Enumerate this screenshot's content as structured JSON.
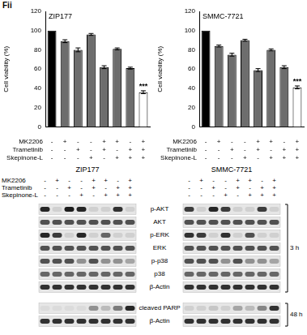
{
  "panel_label": "Fii",
  "treatments": [
    {
      "name": "MK2206",
      "signs": [
        "-",
        "+",
        "-",
        "-",
        "+",
        "+",
        "-",
        "+"
      ]
    },
    {
      "name": "Trametinib",
      "signs": [
        "-",
        "-",
        "+",
        "-",
        "+",
        "-",
        "+",
        "+"
      ]
    },
    {
      "name": "Skepinone-L",
      "signs": [
        "-",
        "-",
        "-",
        "+",
        "-",
        "+",
        "+",
        "+"
      ]
    }
  ],
  "chart_data": [
    {
      "type": "bar",
      "title": "ZIP177",
      "y_label": "Cell viability (%)",
      "categories": [
        null,
        null,
        null,
        null,
        null,
        null,
        null,
        null
      ],
      "values": [
        100,
        89,
        80,
        96,
        62,
        81,
        61,
        36
      ],
      "errors": [
        0,
        1.5,
        2,
        1,
        1.5,
        1,
        1,
        1.5
      ],
      "colors": [
        "#000000",
        "#6d6d6d",
        "#6d6d6d",
        "#6d6d6d",
        "#6d6d6d",
        "#6d6d6d",
        "#6d6d6d",
        "#ffffff"
      ],
      "ylim": [
        0,
        120
      ],
      "yticks": [
        0,
        20,
        40,
        60,
        80,
        100,
        120
      ],
      "grid": false,
      "annotations": [
        {
          "index": 7,
          "text": "***"
        }
      ]
    },
    {
      "type": "bar",
      "title": "SMMC-7721",
      "y_label": "Cell viability (%)",
      "categories": [
        null,
        null,
        null,
        null,
        null,
        null,
        null,
        null
      ],
      "values": [
        100,
        84,
        75,
        90,
        59,
        80,
        62,
        41
      ],
      "errors": [
        0,
        1,
        1.5,
        1,
        1.5,
        1,
        1.5,
        1.5
      ],
      "colors": [
        "#000000",
        "#6d6d6d",
        "#6d6d6d",
        "#6d6d6d",
        "#6d6d6d",
        "#6d6d6d",
        "#6d6d6d",
        "#ffffff"
      ],
      "ylim": [
        0,
        120
      ],
      "yticks": [
        0,
        20,
        40,
        60,
        80,
        100,
        120
      ],
      "grid": false,
      "annotations": [
        {
          "index": 7,
          "text": "***"
        }
      ]
    }
  ],
  "blots": {
    "groups": [
      {
        "time": "3 h",
        "rows": [
          "p-AKT",
          "AKT",
          "p-ERK",
          "ERK",
          "p-p38",
          "p38",
          "β-Actin"
        ]
      },
      {
        "time": "48 h",
        "rows": [
          "cleaved PARP",
          "β-Actin"
        ]
      }
    ],
    "panels": [
      {
        "cell_line": "ZIP177",
        "bands": [
          [
            0.9,
            0.1,
            0.95,
            0.9,
            0.1,
            0.1,
            0.85,
            0.1
          ],
          [
            0.7,
            0.7,
            0.7,
            0.7,
            0.7,
            0.7,
            0.7,
            0.7
          ],
          [
            0.9,
            0.8,
            0.1,
            0.9,
            0.1,
            0.6,
            0.1,
            0.1
          ],
          [
            0.7,
            0.7,
            0.7,
            0.7,
            0.7,
            0.7,
            0.7,
            0.7
          ],
          [
            0.7,
            0.7,
            0.7,
            0.4,
            0.7,
            0.4,
            0.4,
            0.3
          ],
          [
            0.6,
            0.6,
            0.6,
            0.6,
            0.6,
            0.6,
            0.6,
            0.6
          ],
          [
            0.85,
            0.85,
            0.85,
            0.85,
            0.85,
            0.85,
            0.85,
            0.85
          ],
          [
            0.05,
            0.05,
            0.05,
            0.05,
            0.4,
            0.2,
            0.5,
            0.9
          ],
          [
            0.85,
            0.85,
            0.85,
            0.85,
            0.85,
            0.85,
            0.85,
            0.85
          ]
        ]
      },
      {
        "cell_line": "SMMC-7721",
        "bands": [
          [
            0.8,
            0.1,
            0.9,
            0.8,
            0.1,
            0.1,
            0.8,
            0.1
          ],
          [
            0.7,
            0.7,
            0.7,
            0.7,
            0.7,
            0.7,
            0.7,
            0.7
          ],
          [
            0.85,
            0.8,
            0.1,
            0.85,
            0.1,
            0.7,
            0.1,
            0.1
          ],
          [
            0.7,
            0.7,
            0.7,
            0.7,
            0.7,
            0.7,
            0.7,
            0.7
          ],
          [
            0.7,
            0.7,
            0.7,
            0.4,
            0.7,
            0.4,
            0.4,
            0.3
          ],
          [
            0.6,
            0.6,
            0.6,
            0.6,
            0.6,
            0.6,
            0.6,
            0.6
          ],
          [
            0.85,
            0.85,
            0.85,
            0.85,
            0.85,
            0.85,
            0.85,
            0.85
          ],
          [
            0.1,
            0.1,
            0.15,
            0.1,
            0.3,
            0.2,
            0.45,
            0.85
          ],
          [
            0.85,
            0.85,
            0.85,
            0.85,
            0.85,
            0.85,
            0.85,
            0.85
          ]
        ]
      }
    ]
  }
}
